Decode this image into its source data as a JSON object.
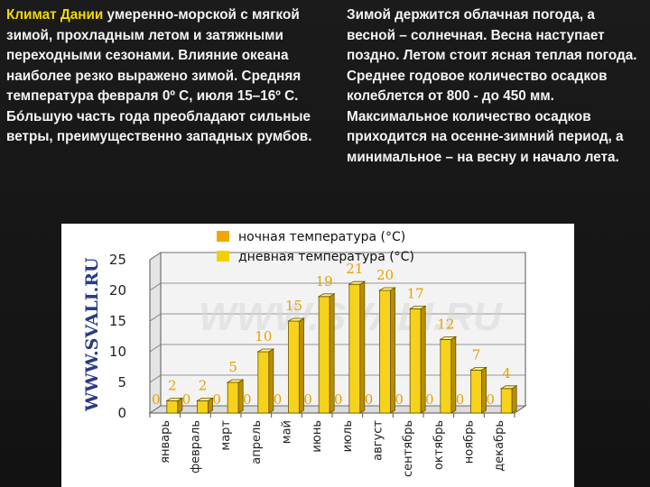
{
  "text": {
    "left_lead": "Климат Дании",
    "left_rest": " умеренно-морской с мягкой зимой, прохладным летом и затяжными переходными сезонами. Влияние океана наиболее резко выражено зимой. Средняя температура февраля 0º С, июля 15–16º С. Бóльшую часть года преобладают сильные ветры, преимущественно западных румбов.",
    "right": "Зимой держится облачная погода, а весной – солнечная. Весна наступает поздно. Летом стоит ясная теплая погода. Среднее годовое количество осадков колеблется от 800 - до 450 мм. Максимальное количество осадков приходится на осенне-зимний период, а минимальное – на весну и начало лета."
  },
  "colors": {
    "night_series": "#f0a800",
    "day_series": "#f0d000",
    "bar_front": "#f6d21a",
    "bar_side": "#b88e00",
    "bar_top": "#fff08a",
    "value_labels": "#e8a000",
    "accent_text": "#f5d800",
    "watermark_side": "#2a3a8a"
  },
  "watermark": {
    "side": "WWW.SVALI.RU",
    "center": "WWW.SVALI.RU"
  },
  "chart_data": {
    "type": "bar",
    "title": "",
    "xlabel": "",
    "ylabel": "",
    "ylim": [
      0,
      25
    ],
    "yticks": [
      "0",
      "5",
      "10",
      "15",
      "20",
      "25"
    ],
    "grid": true,
    "three_d": true,
    "legend_position": "top",
    "categories": [
      "январь",
      "февраль",
      "март",
      "апрель",
      "май",
      "июнь",
      "июль",
      "август",
      "сентябрь",
      "октябрь",
      "ноябрь",
      "декабрь"
    ],
    "series": [
      {
        "name": "ночная температура (°C)",
        "values": [
          0,
          0,
          0,
          0,
          0,
          0,
          0,
          0,
          0,
          0,
          0,
          0
        ]
      },
      {
        "name": "дневная температура (°C)",
        "values": [
          2,
          2,
          5,
          10,
          15,
          19,
          21,
          20,
          17,
          12,
          7,
          4
        ]
      }
    ]
  }
}
